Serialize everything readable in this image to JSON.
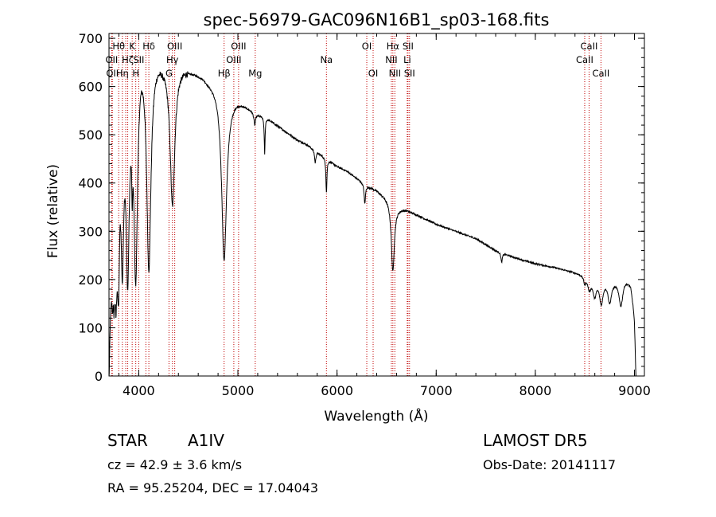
{
  "chart_data": {
    "type": "line",
    "title": "spec-56979-GAC096N16B1_sp03-168.fits",
    "xlabel": "Wavelength (Å)",
    "ylabel": "Flux (relative)",
    "xlim": [
      3700,
      9100
    ],
    "ylim": [
      0,
      710
    ],
    "xticks": [
      {
        "value": 4000,
        "label": "4000"
      },
      {
        "value": 5000,
        "label": "5000"
      },
      {
        "value": 6000,
        "label": "6000"
      },
      {
        "value": 7000,
        "label": "7000"
      },
      {
        "value": 8000,
        "label": "8000"
      },
      {
        "value": 9000,
        "label": "9000"
      }
    ],
    "yticks": [
      {
        "value": 0,
        "label": "0"
      },
      {
        "value": 100,
        "label": "100"
      },
      {
        "value": 200,
        "label": "200"
      },
      {
        "value": 300,
        "label": "300"
      },
      {
        "value": 400,
        "label": "400"
      },
      {
        "value": 500,
        "label": "500"
      },
      {
        "value": 600,
        "label": "600"
      },
      {
        "value": 700,
        "label": "700"
      }
    ],
    "line_color": "#000000",
    "marker_color": "#c00000",
    "continuum": [
      [
        3700,
        0
      ],
      [
        3715,
        150
      ],
      [
        3725,
        190
      ],
      [
        3735,
        215
      ],
      [
        3760,
        240
      ],
      [
        3790,
        320
      ],
      [
        3800,
        420
      ],
      [
        3810,
        470
      ],
      [
        3830,
        500
      ],
      [
        3860,
        560
      ],
      [
        3900,
        610
      ],
      [
        3940,
        650
      ],
      [
        3980,
        690
      ],
      [
        4020,
        705
      ],
      [
        4060,
        700
      ],
      [
        4100,
        690
      ],
      [
        4150,
        680
      ],
      [
        4200,
        670
      ],
      [
        4250,
        660
      ],
      [
        4300,
        655
      ],
      [
        4350,
        650
      ],
      [
        4400,
        648
      ],
      [
        4450,
        645
      ],
      [
        4500,
        640
      ],
      [
        4550,
        635
      ],
      [
        4600,
        630
      ],
      [
        4650,
        625
      ],
      [
        4700,
        615
      ],
      [
        4750,
        610
      ],
      [
        4800,
        605
      ],
      [
        4830,
        600
      ],
      [
        4900,
        580
      ],
      [
        4950,
        578
      ],
      [
        5000,
        575
      ],
      [
        5100,
        560
      ],
      [
        5200,
        545
      ],
      [
        5300,
        535
      ],
      [
        5400,
        520
      ],
      [
        5500,
        505
      ],
      [
        5600,
        490
      ],
      [
        5700,
        480
      ],
      [
        5800,
        465
      ],
      [
        5900,
        450
      ],
      [
        6000,
        435
      ],
      [
        6100,
        425
      ],
      [
        6200,
        410
      ],
      [
        6300,
        395
      ],
      [
        6400,
        385
      ],
      [
        6500,
        370
      ],
      [
        6600,
        350
      ],
      [
        6700,
        345
      ],
      [
        6800,
        335
      ],
      [
        6900,
        325
      ],
      [
        7000,
        315
      ],
      [
        7200,
        300
      ],
      [
        7400,
        285
      ],
      [
        7600,
        260
      ],
      [
        7800,
        245
      ],
      [
        8000,
        233
      ],
      [
        8200,
        225
      ],
      [
        8400,
        215
      ],
      [
        8500,
        210
      ],
      [
        8600,
        205
      ],
      [
        8700,
        203
      ],
      [
        8800,
        200
      ],
      [
        8900,
        205
      ],
      [
        8960,
        195
      ],
      [
        9000,
        150
      ],
      [
        9020,
        30
      ]
    ],
    "absorption_features": [
      {
        "center": 3735,
        "depth": 50,
        "width": 6
      },
      {
        "center": 3750,
        "depth": 60,
        "width": 7
      },
      {
        "center": 3771,
        "depth": 90,
        "width": 8
      },
      {
        "center": 3798,
        "depth": 180,
        "width": 10
      },
      {
        "center": 3835,
        "depth": 250,
        "width": 14
      },
      {
        "center": 3889,
        "depth": 360,
        "width": 18
      },
      {
        "center": 3934,
        "depth": 120,
        "width": 5
      },
      {
        "center": 3970,
        "depth": 450,
        "width": 22
      },
      {
        "center": 4102,
        "depth": 450,
        "width": 26
      },
      {
        "center": 4340,
        "depth": 290,
        "width": 28
      },
      {
        "center": 4861,
        "depth": 350,
        "width": 30
      },
      {
        "center": 5170,
        "depth": 25,
        "width": 10
      },
      {
        "center": 5270,
        "depth": 75,
        "width": 5
      },
      {
        "center": 5780,
        "depth": 25,
        "width": 8
      },
      {
        "center": 5893,
        "depth": 70,
        "width": 6
      },
      {
        "center": 6280,
        "depth": 40,
        "width": 8
      },
      {
        "center": 6563,
        "depth": 140,
        "width": 18
      },
      {
        "center": 7660,
        "depth": 20,
        "width": 8
      },
      {
        "center": 8498,
        "depth": 15,
        "width": 12
      },
      {
        "center": 8545,
        "depth": 25,
        "width": 20
      },
      {
        "center": 8598,
        "depth": 35,
        "width": 20
      },
      {
        "center": 8665,
        "depth": 50,
        "width": 22
      },
      {
        "center": 8750,
        "depth": 45,
        "width": 22
      },
      {
        "center": 8863,
        "depth": 55,
        "width": 24
      },
      {
        "center": 9015,
        "depth": 60,
        "width": 20
      }
    ],
    "line_markers": [
      {
        "wavelength": 3727,
        "label": "OII",
        "row": 1
      },
      {
        "wavelength": 3734,
        "label": "OII",
        "row": 2
      },
      {
        "wavelength": 3798,
        "label": "Hθ",
        "row": 0
      },
      {
        "wavelength": 3835,
        "label": "Hη",
        "row": 2
      },
      {
        "wavelength": 3869,
        "label": "",
        "row": 2
      },
      {
        "wavelength": 3889,
        "label": "Hζ",
        "row": 1
      },
      {
        "wavelength": 3934,
        "label": "K",
        "row": 0
      },
      {
        "wavelength": 3970,
        "label": "H",
        "row": 2
      },
      {
        "wavelength": 4000,
        "label": "SII",
        "row": 1
      },
      {
        "wavelength": 4072,
        "label": "",
        "row": 1
      },
      {
        "wavelength": 4102,
        "label": "Hδ",
        "row": 0
      },
      {
        "wavelength": 4305,
        "label": "G",
        "row": 2
      },
      {
        "wavelength": 4340,
        "label": "Hγ",
        "row": 1
      },
      {
        "wavelength": 4363,
        "label": "OIII",
        "row": 0
      },
      {
        "wavelength": 4861,
        "label": "Hβ",
        "row": 2
      },
      {
        "wavelength": 4959,
        "label": "OIII",
        "row": 1
      },
      {
        "wavelength": 5007,
        "label": "OIII",
        "row": 0
      },
      {
        "wavelength": 5175,
        "label": "Mg",
        "row": 2
      },
      {
        "wavelength": 5893,
        "label": "Na",
        "row": 1
      },
      {
        "wavelength": 6300,
        "label": "OI",
        "row": 0
      },
      {
        "wavelength": 6364,
        "label": "OI",
        "row": 2
      },
      {
        "wavelength": 6548,
        "label": "NII",
        "row": 1
      },
      {
        "wavelength": 6563,
        "label": "Hα",
        "row": 0
      },
      {
        "wavelength": 6583,
        "label": "NII",
        "row": 2
      },
      {
        "wavelength": 6708,
        "label": "Li",
        "row": 1
      },
      {
        "wavelength": 6716,
        "label": "SII",
        "row": 0
      },
      {
        "wavelength": 6731,
        "label": "SII",
        "row": 2
      },
      {
        "wavelength": 8498,
        "label": "CaII",
        "row": 1
      },
      {
        "wavelength": 8542,
        "label": "CaII",
        "row": 0
      },
      {
        "wavelength": 8662,
        "label": "CaII",
        "row": 2
      }
    ]
  },
  "info": {
    "class_label": "STAR",
    "subclass": "A1IV",
    "survey": "LAMOST DR5",
    "cz_text": "cz = 42.9 ± 3.6 km/s",
    "obs_date_text": "Obs-Date: 20141117",
    "coords_text": "RA =  95.25204, DEC =  17.04043"
  }
}
